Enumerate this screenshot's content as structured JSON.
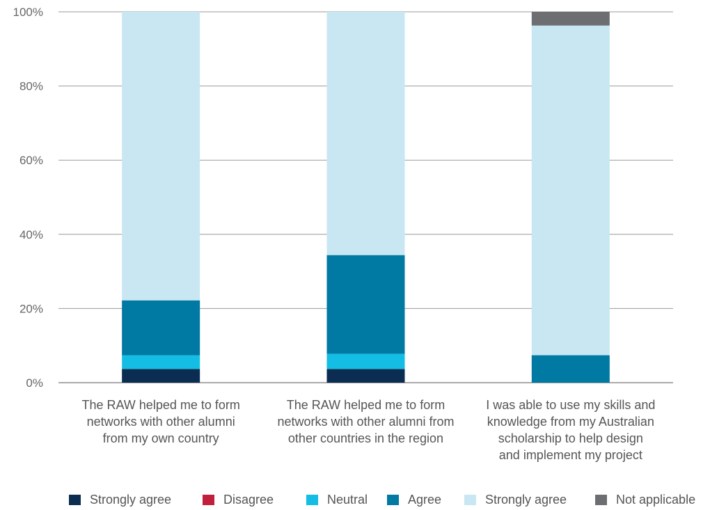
{
  "chart_data": {
    "type": "bar",
    "stacked": true,
    "categories": [
      [
        "The RAW helped me to form",
        "networks with other alumni",
        "from my own country"
      ],
      [
        "The RAW helped me to form",
        "networks with other alumni from",
        "other countries in the region"
      ],
      [
        "I was able to use my skills and",
        "knowledge from my Australian",
        "scholarship to help design",
        "and implement my project"
      ]
    ],
    "ylim": [
      0,
      100
    ],
    "yticks": [
      "0%",
      "20%",
      "40%",
      "60%",
      "80%",
      "100%"
    ],
    "grid": true,
    "legend_position": "bottom",
    "series": [
      {
        "name": "Strongly agree",
        "color": "#0b2d52",
        "values": [
          3.7,
          3.7,
          0
        ]
      },
      {
        "name": "Disagree",
        "color": "#c0203a",
        "values": [
          0,
          0,
          0
        ]
      },
      {
        "name": "Neutral",
        "color": "#13bde3",
        "values": [
          3.7,
          4.1,
          0
        ]
      },
      {
        "name": "Agree",
        "color": "#0079a3",
        "values": [
          14.8,
          26.6,
          7.4
        ]
      },
      {
        "name": "Strongly agree",
        "color": "#c8e7f2",
        "values": [
          77.8,
          65.6,
          88.9
        ]
      },
      {
        "name": "Not applicable",
        "color": "#6d6e71",
        "values": [
          0,
          0,
          3.7
        ]
      }
    ]
  }
}
